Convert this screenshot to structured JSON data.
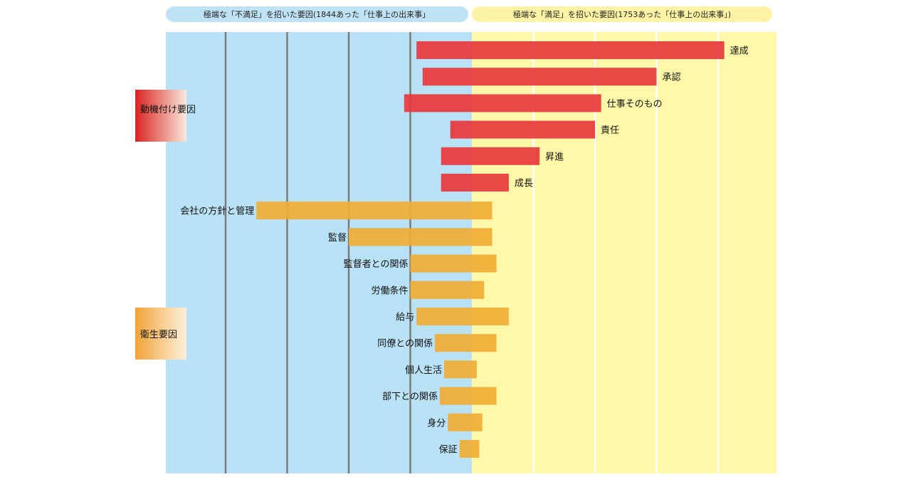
{
  "chart_data": {
    "type": "bar",
    "orientation": "horizontal-diverging",
    "header_left": "極端な「不満足」を招いた要因(1844あった「仕事上の出来事」",
    "header_right": "極端な「満足」を招いた要因(1753あった「仕事上の出来事」)",
    "colors": {
      "dissatisfaction_bg": "#b9e2f6",
      "satisfaction_bg": "#fff8a8",
      "motivator_bar": "#e8383d",
      "hygiene_bar": "#f0ad35",
      "header_left_bg": "#bfe3f5",
      "header_right_bg": "#fdf3a5",
      "grid_left": "#7a7a7a",
      "grid_right": "#ffffff"
    },
    "xlim_dissatisfaction": [
      0,
      50
    ],
    "xlim_satisfaction": [
      0,
      50
    ],
    "grid": "every 10%",
    "groups": [
      {
        "name": "動機付け要因",
        "color": "#e8383d",
        "items": [
          {
            "label": "達成",
            "dissatisfaction": 9,
            "satisfaction": 41
          },
          {
            "label": "承認",
            "dissatisfaction": 8,
            "satisfaction": 30
          },
          {
            "label": "仕事そのもの",
            "dissatisfaction": 11,
            "satisfaction": 21
          },
          {
            "label": "責任",
            "dissatisfaction": 3.5,
            "satisfaction": 20
          },
          {
            "label": "昇進",
            "dissatisfaction": 5,
            "satisfaction": 11
          },
          {
            "label": "成長",
            "dissatisfaction": 5,
            "satisfaction": 6
          }
        ]
      },
      {
        "name": "衛生要因",
        "color": "#f0ad35",
        "items": [
          {
            "label": "会社の方針と管理",
            "dissatisfaction": 35,
            "satisfaction": 3.3
          },
          {
            "label": "監督",
            "dissatisfaction": 20,
            "satisfaction": 3.3
          },
          {
            "label": "監督者との関係",
            "dissatisfaction": 10,
            "satisfaction": 4
          },
          {
            "label": "労働条件",
            "dissatisfaction": 10,
            "satisfaction": 2
          },
          {
            "label": "給与",
            "dissatisfaction": 9,
            "satisfaction": 6
          },
          {
            "label": "同僚との関係",
            "dissatisfaction": 6,
            "satisfaction": 4
          },
          {
            "label": "個人生活",
            "dissatisfaction": 4.5,
            "satisfaction": 0.8
          },
          {
            "label": "部下との関係",
            "dissatisfaction": 5.2,
            "satisfaction": 4
          },
          {
            "label": "身分",
            "dissatisfaction": 3.9,
            "satisfaction": 1.7
          },
          {
            "label": "保証",
            "dissatisfaction": 2,
            "satisfaction": 1.2
          }
        ]
      }
    ]
  }
}
